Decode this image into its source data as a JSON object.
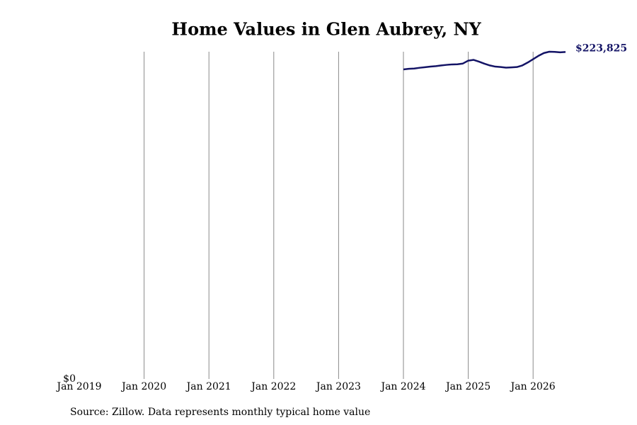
{
  "chart_data": {
    "type": "line",
    "title": "Home Values in Glen Aubrey, NY",
    "source": "Source: Zillow. Data represents monthly typical home value",
    "x": [
      "2024-01",
      "2024-02",
      "2024-03",
      "2024-04",
      "2024-05",
      "2024-06",
      "2024-07",
      "2024-08",
      "2024-09",
      "2024-10",
      "2024-11",
      "2024-12",
      "2025-01",
      "2025-02",
      "2025-03",
      "2025-04",
      "2025-05",
      "2025-06",
      "2025-07",
      "2025-08",
      "2025-09",
      "2025-10",
      "2025-11",
      "2025-12",
      "2026-01",
      "2026-02",
      "2026-03",
      "2026-04",
      "2026-05",
      "2026-06",
      "2026-07"
    ],
    "series": [
      {
        "name": "Home value",
        "color": "#141466",
        "values": [
          211900,
          212300,
          212500,
          213000,
          213400,
          213800,
          214100,
          214600,
          215000,
          215300,
          215400,
          215900,
          217900,
          218400,
          217200,
          215800,
          214600,
          213800,
          213500,
          213100,
          213300,
          213500,
          214600,
          216600,
          218900,
          221200,
          223100,
          224000,
          223900,
          223600,
          223825
        ],
        "value_labels": [
          null,
          null,
          null,
          null,
          null,
          null,
          null,
          null,
          null,
          null,
          null,
          null,
          null,
          null,
          null,
          null,
          null,
          null,
          null,
          null,
          null,
          null,
          null,
          null,
          null,
          null,
          null,
          null,
          null,
          null,
          "$223,825"
        ]
      }
    ],
    "xlim": [
      "2019-01",
      "2026-07"
    ],
    "xticks": [
      {
        "value": "2019-01",
        "label": "Jan 2019"
      },
      {
        "value": "2020-01",
        "label": "Jan 2020"
      },
      {
        "value": "2021-01",
        "label": "Jan 2021"
      },
      {
        "value": "2022-01",
        "label": "Jan 2022"
      },
      {
        "value": "2023-01",
        "label": "Jan 2023"
      },
      {
        "value": "2024-01",
        "label": "Jan 2024"
      },
      {
        "value": "2025-01",
        "label": "Jan 2025"
      },
      {
        "value": "2026-01",
        "label": "Jan 2026"
      }
    ],
    "ylim": [
      0,
      224000
    ],
    "yticks": [
      {
        "value": 0,
        "label": "$0"
      }
    ],
    "grid": true
  }
}
